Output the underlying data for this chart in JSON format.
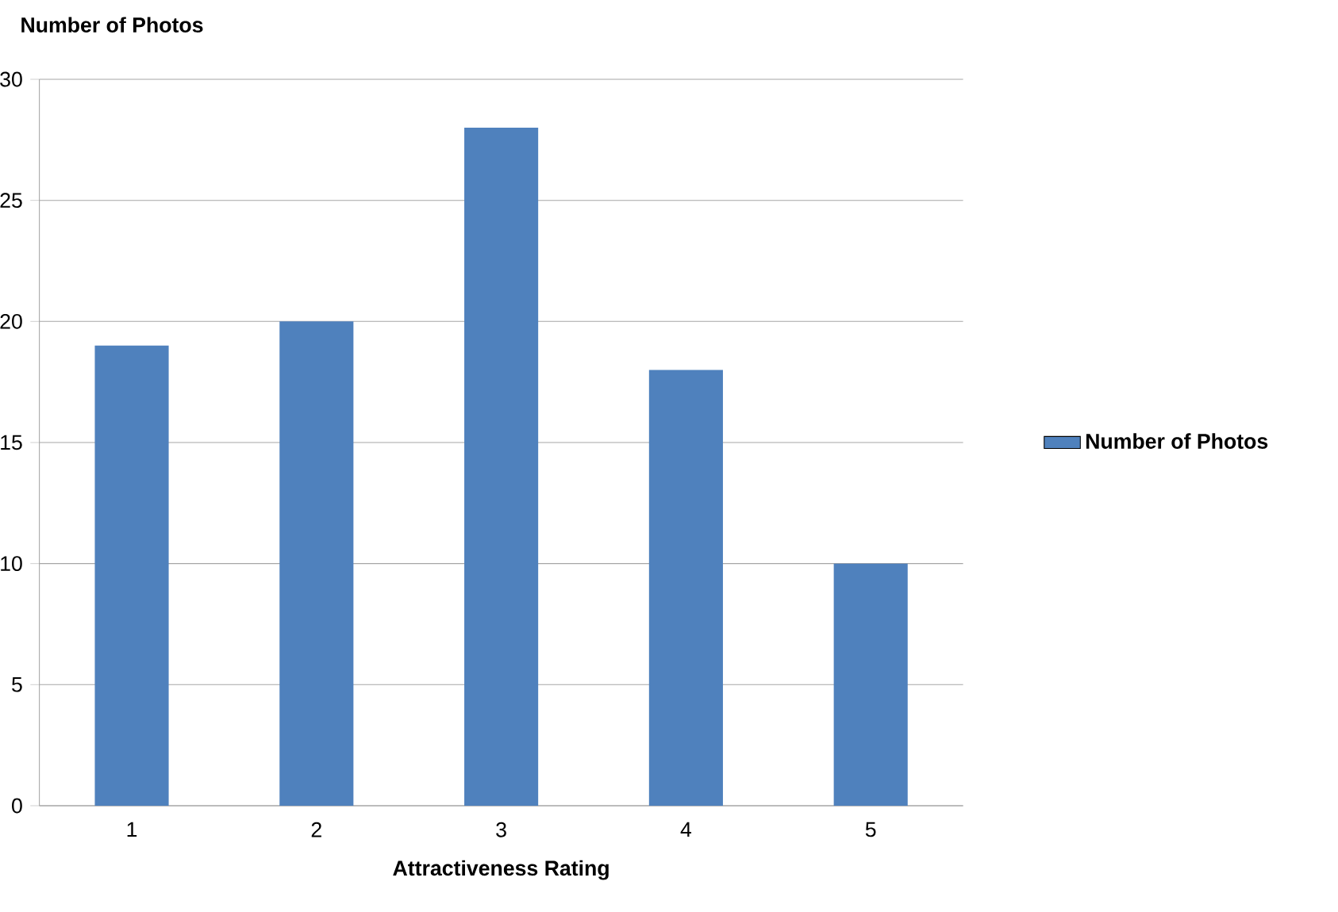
{
  "chart_data": {
    "type": "bar",
    "ylabel": "Number of Photos",
    "xlabel": "Attractiveness Rating",
    "categories": [
      "1",
      "2",
      "3",
      "4",
      "5"
    ],
    "series": [
      {
        "name": "Number of Photos",
        "color": "#4f81bd",
        "values": [
          19,
          20,
          28,
          18,
          10
        ]
      }
    ],
    "ylim": [
      0,
      30
    ],
    "yticks": [
      0,
      5,
      10,
      15,
      20,
      25,
      30
    ],
    "grid": "y",
    "legend": "right"
  }
}
